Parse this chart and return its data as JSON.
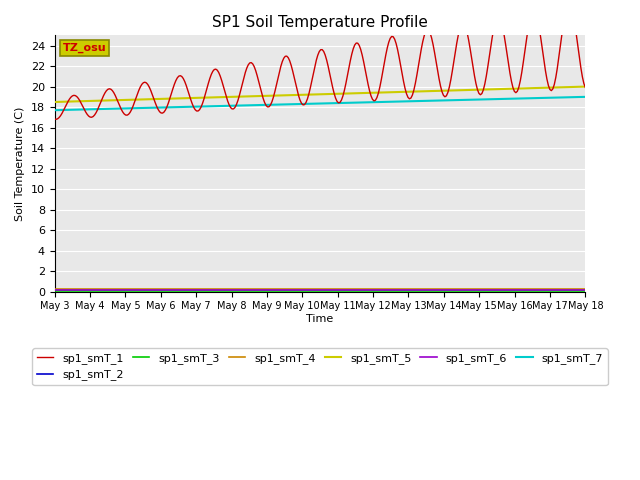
{
  "title": "SP1 Soil Temperature Profile",
  "xlabel": "Time",
  "ylabel": "Soil Temperature (C)",
  "background_color": "#e8e8e8",
  "ylim": [
    0,
    25
  ],
  "yticks": [
    0,
    2,
    4,
    6,
    8,
    10,
    12,
    14,
    16,
    18,
    20,
    22,
    24
  ],
  "x_labels": [
    "May 3",
    "May 4",
    "May 5",
    "May 6",
    "May 7",
    "May 8",
    "May 9",
    "May 10",
    "May 11",
    "May 12",
    "May 13",
    "May 14",
    "May 15",
    "May 16",
    "May 17",
    "May 18"
  ],
  "series_colors": {
    "sp1_smT_1": "#cc0000",
    "sp1_smT_2": "#0000cc",
    "sp1_smT_3": "#00cc00",
    "sp1_smT_4": "#cc8800",
    "sp1_smT_5": "#cccc00",
    "sp1_smT_6": "#9900cc",
    "sp1_smT_7": "#00cccc"
  },
  "legend_label": "TZ_osu",
  "legend_bg": "#cccc00",
  "legend_border": "#888800",
  "legend_text": "#cc0000"
}
